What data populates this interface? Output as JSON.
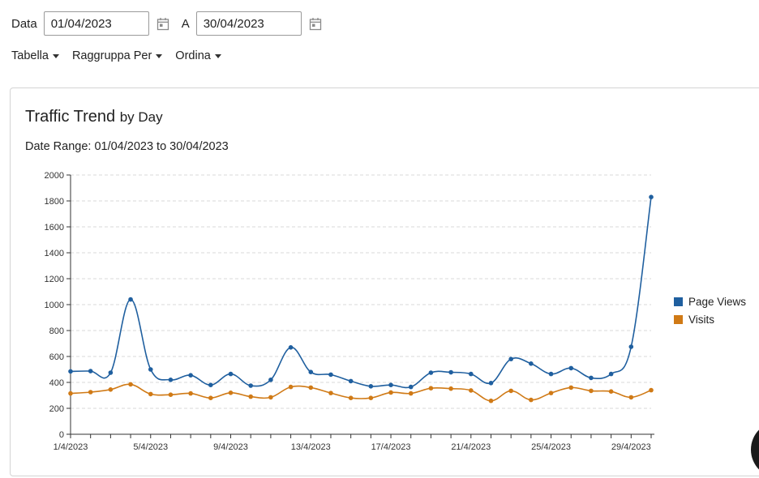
{
  "filters": {
    "from_label": "Data",
    "from_value": "01/04/2023",
    "to_label": "A",
    "to_value": "30/04/2023"
  },
  "menu": {
    "items": [
      "Tabella",
      "Raggruppa Per",
      "Ordina"
    ]
  },
  "panel": {
    "title": "Traffic Trend",
    "title_sub": "by Day",
    "range_text": "Date Range: 01/04/2023 to 30/04/2023"
  },
  "colors": {
    "page_views": "#1f5f9f",
    "visits": "#d07a16"
  },
  "chart_data": {
    "type": "line",
    "x": [
      "1/4/2023",
      "2/4/2023",
      "3/4/2023",
      "4/4/2023",
      "5/4/2023",
      "6/4/2023",
      "7/4/2023",
      "8/4/2023",
      "9/4/2023",
      "10/4/2023",
      "11/4/2023",
      "12/4/2023",
      "13/4/2023",
      "14/4/2023",
      "15/4/2023",
      "16/4/2023",
      "17/4/2023",
      "18/4/2023",
      "19/4/2023",
      "20/4/2023",
      "21/4/2023",
      "22/4/2023",
      "23/4/2023",
      "24/4/2023",
      "25/4/2023",
      "26/4/2023",
      "27/4/2023",
      "28/4/2023",
      "29/4/2023",
      "30/4/2023"
    ],
    "xticks": [
      "1/4/2023",
      "5/4/2023",
      "9/4/2023",
      "13/4/2023",
      "17/4/2023",
      "21/4/2023",
      "25/4/2023",
      "29/4/2023"
    ],
    "series": [
      {
        "name": "Page Views",
        "values": [
          485,
          487,
          475,
          1040,
          500,
          420,
          455,
          380,
          465,
          375,
          420,
          670,
          480,
          460,
          410,
          370,
          380,
          365,
          475,
          478,
          465,
          395,
          580,
          545,
          465,
          510,
          435,
          465,
          675,
          1830
        ]
      },
      {
        "name": "Visits",
        "values": [
          315,
          325,
          345,
          385,
          310,
          305,
          315,
          280,
          320,
          290,
          285,
          365,
          360,
          318,
          280,
          280,
          322,
          315,
          355,
          352,
          338,
          258,
          335,
          265,
          318,
          360,
          335,
          330,
          285,
          340
        ]
      }
    ],
    "ylim": [
      0,
      2000
    ],
    "yticks": [
      0,
      200,
      400,
      600,
      800,
      1000,
      1200,
      1400,
      1600,
      1800,
      2000
    ],
    "grid": true,
    "legend": "right"
  }
}
